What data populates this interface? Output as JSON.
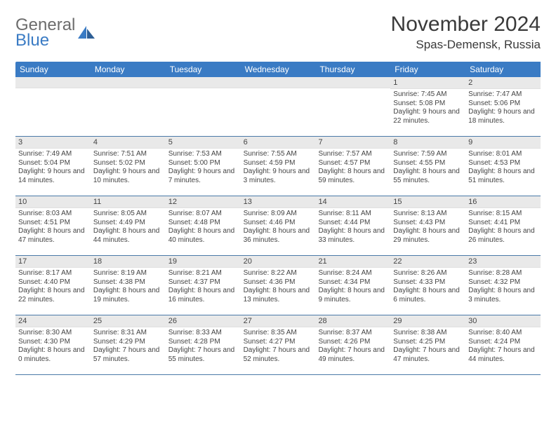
{
  "brand": {
    "word1": "General",
    "word2": "Blue",
    "colors": {
      "grey": "#6c6c6c",
      "blue": "#3a7bc4"
    }
  },
  "title": "November 2024",
  "location": "Spas-Demensk, Russia",
  "weekdays": [
    "Sunday",
    "Monday",
    "Tuesday",
    "Wednesday",
    "Thursday",
    "Friday",
    "Saturday"
  ],
  "style": {
    "header_bg": "#3a7bc4",
    "header_fg": "#ffffff",
    "row_border": "#4a7aa8",
    "daynum_bg": "#e9e9e9",
    "text_color": "#444444",
    "title_color": "#3a3a3a",
    "page_bg": "#ffffff",
    "weekday_fontsize": 12,
    "daynum_fontsize": 11,
    "body_fontsize": 10,
    "title_fontsize": 30,
    "location_fontsize": 17
  },
  "weeks": [
    [
      {
        "n": "",
        "sr": "",
        "ss": "",
        "dl": ""
      },
      {
        "n": "",
        "sr": "",
        "ss": "",
        "dl": ""
      },
      {
        "n": "",
        "sr": "",
        "ss": "",
        "dl": ""
      },
      {
        "n": "",
        "sr": "",
        "ss": "",
        "dl": ""
      },
      {
        "n": "",
        "sr": "",
        "ss": "",
        "dl": ""
      },
      {
        "n": "1",
        "sr": "Sunrise: 7:45 AM",
        "ss": "Sunset: 5:08 PM",
        "dl": "Daylight: 9 hours and 22 minutes."
      },
      {
        "n": "2",
        "sr": "Sunrise: 7:47 AM",
        "ss": "Sunset: 5:06 PM",
        "dl": "Daylight: 9 hours and 18 minutes."
      }
    ],
    [
      {
        "n": "3",
        "sr": "Sunrise: 7:49 AM",
        "ss": "Sunset: 5:04 PM",
        "dl": "Daylight: 9 hours and 14 minutes."
      },
      {
        "n": "4",
        "sr": "Sunrise: 7:51 AM",
        "ss": "Sunset: 5:02 PM",
        "dl": "Daylight: 9 hours and 10 minutes."
      },
      {
        "n": "5",
        "sr": "Sunrise: 7:53 AM",
        "ss": "Sunset: 5:00 PM",
        "dl": "Daylight: 9 hours and 7 minutes."
      },
      {
        "n": "6",
        "sr": "Sunrise: 7:55 AM",
        "ss": "Sunset: 4:59 PM",
        "dl": "Daylight: 9 hours and 3 minutes."
      },
      {
        "n": "7",
        "sr": "Sunrise: 7:57 AM",
        "ss": "Sunset: 4:57 PM",
        "dl": "Daylight: 8 hours and 59 minutes."
      },
      {
        "n": "8",
        "sr": "Sunrise: 7:59 AM",
        "ss": "Sunset: 4:55 PM",
        "dl": "Daylight: 8 hours and 55 minutes."
      },
      {
        "n": "9",
        "sr": "Sunrise: 8:01 AM",
        "ss": "Sunset: 4:53 PM",
        "dl": "Daylight: 8 hours and 51 minutes."
      }
    ],
    [
      {
        "n": "10",
        "sr": "Sunrise: 8:03 AM",
        "ss": "Sunset: 4:51 PM",
        "dl": "Daylight: 8 hours and 47 minutes."
      },
      {
        "n": "11",
        "sr": "Sunrise: 8:05 AM",
        "ss": "Sunset: 4:49 PM",
        "dl": "Daylight: 8 hours and 44 minutes."
      },
      {
        "n": "12",
        "sr": "Sunrise: 8:07 AM",
        "ss": "Sunset: 4:48 PM",
        "dl": "Daylight: 8 hours and 40 minutes."
      },
      {
        "n": "13",
        "sr": "Sunrise: 8:09 AM",
        "ss": "Sunset: 4:46 PM",
        "dl": "Daylight: 8 hours and 36 minutes."
      },
      {
        "n": "14",
        "sr": "Sunrise: 8:11 AM",
        "ss": "Sunset: 4:44 PM",
        "dl": "Daylight: 8 hours and 33 minutes."
      },
      {
        "n": "15",
        "sr": "Sunrise: 8:13 AM",
        "ss": "Sunset: 4:43 PM",
        "dl": "Daylight: 8 hours and 29 minutes."
      },
      {
        "n": "16",
        "sr": "Sunrise: 8:15 AM",
        "ss": "Sunset: 4:41 PM",
        "dl": "Daylight: 8 hours and 26 minutes."
      }
    ],
    [
      {
        "n": "17",
        "sr": "Sunrise: 8:17 AM",
        "ss": "Sunset: 4:40 PM",
        "dl": "Daylight: 8 hours and 22 minutes."
      },
      {
        "n": "18",
        "sr": "Sunrise: 8:19 AM",
        "ss": "Sunset: 4:38 PM",
        "dl": "Daylight: 8 hours and 19 minutes."
      },
      {
        "n": "19",
        "sr": "Sunrise: 8:21 AM",
        "ss": "Sunset: 4:37 PM",
        "dl": "Daylight: 8 hours and 16 minutes."
      },
      {
        "n": "20",
        "sr": "Sunrise: 8:22 AM",
        "ss": "Sunset: 4:36 PM",
        "dl": "Daylight: 8 hours and 13 minutes."
      },
      {
        "n": "21",
        "sr": "Sunrise: 8:24 AM",
        "ss": "Sunset: 4:34 PM",
        "dl": "Daylight: 8 hours and 9 minutes."
      },
      {
        "n": "22",
        "sr": "Sunrise: 8:26 AM",
        "ss": "Sunset: 4:33 PM",
        "dl": "Daylight: 8 hours and 6 minutes."
      },
      {
        "n": "23",
        "sr": "Sunrise: 8:28 AM",
        "ss": "Sunset: 4:32 PM",
        "dl": "Daylight: 8 hours and 3 minutes."
      }
    ],
    [
      {
        "n": "24",
        "sr": "Sunrise: 8:30 AM",
        "ss": "Sunset: 4:30 PM",
        "dl": "Daylight: 8 hours and 0 minutes."
      },
      {
        "n": "25",
        "sr": "Sunrise: 8:31 AM",
        "ss": "Sunset: 4:29 PM",
        "dl": "Daylight: 7 hours and 57 minutes."
      },
      {
        "n": "26",
        "sr": "Sunrise: 8:33 AM",
        "ss": "Sunset: 4:28 PM",
        "dl": "Daylight: 7 hours and 55 minutes."
      },
      {
        "n": "27",
        "sr": "Sunrise: 8:35 AM",
        "ss": "Sunset: 4:27 PM",
        "dl": "Daylight: 7 hours and 52 minutes."
      },
      {
        "n": "28",
        "sr": "Sunrise: 8:37 AM",
        "ss": "Sunset: 4:26 PM",
        "dl": "Daylight: 7 hours and 49 minutes."
      },
      {
        "n": "29",
        "sr": "Sunrise: 8:38 AM",
        "ss": "Sunset: 4:25 PM",
        "dl": "Daylight: 7 hours and 47 minutes."
      },
      {
        "n": "30",
        "sr": "Sunrise: 8:40 AM",
        "ss": "Sunset: 4:24 PM",
        "dl": "Daylight: 7 hours and 44 minutes."
      }
    ]
  ]
}
